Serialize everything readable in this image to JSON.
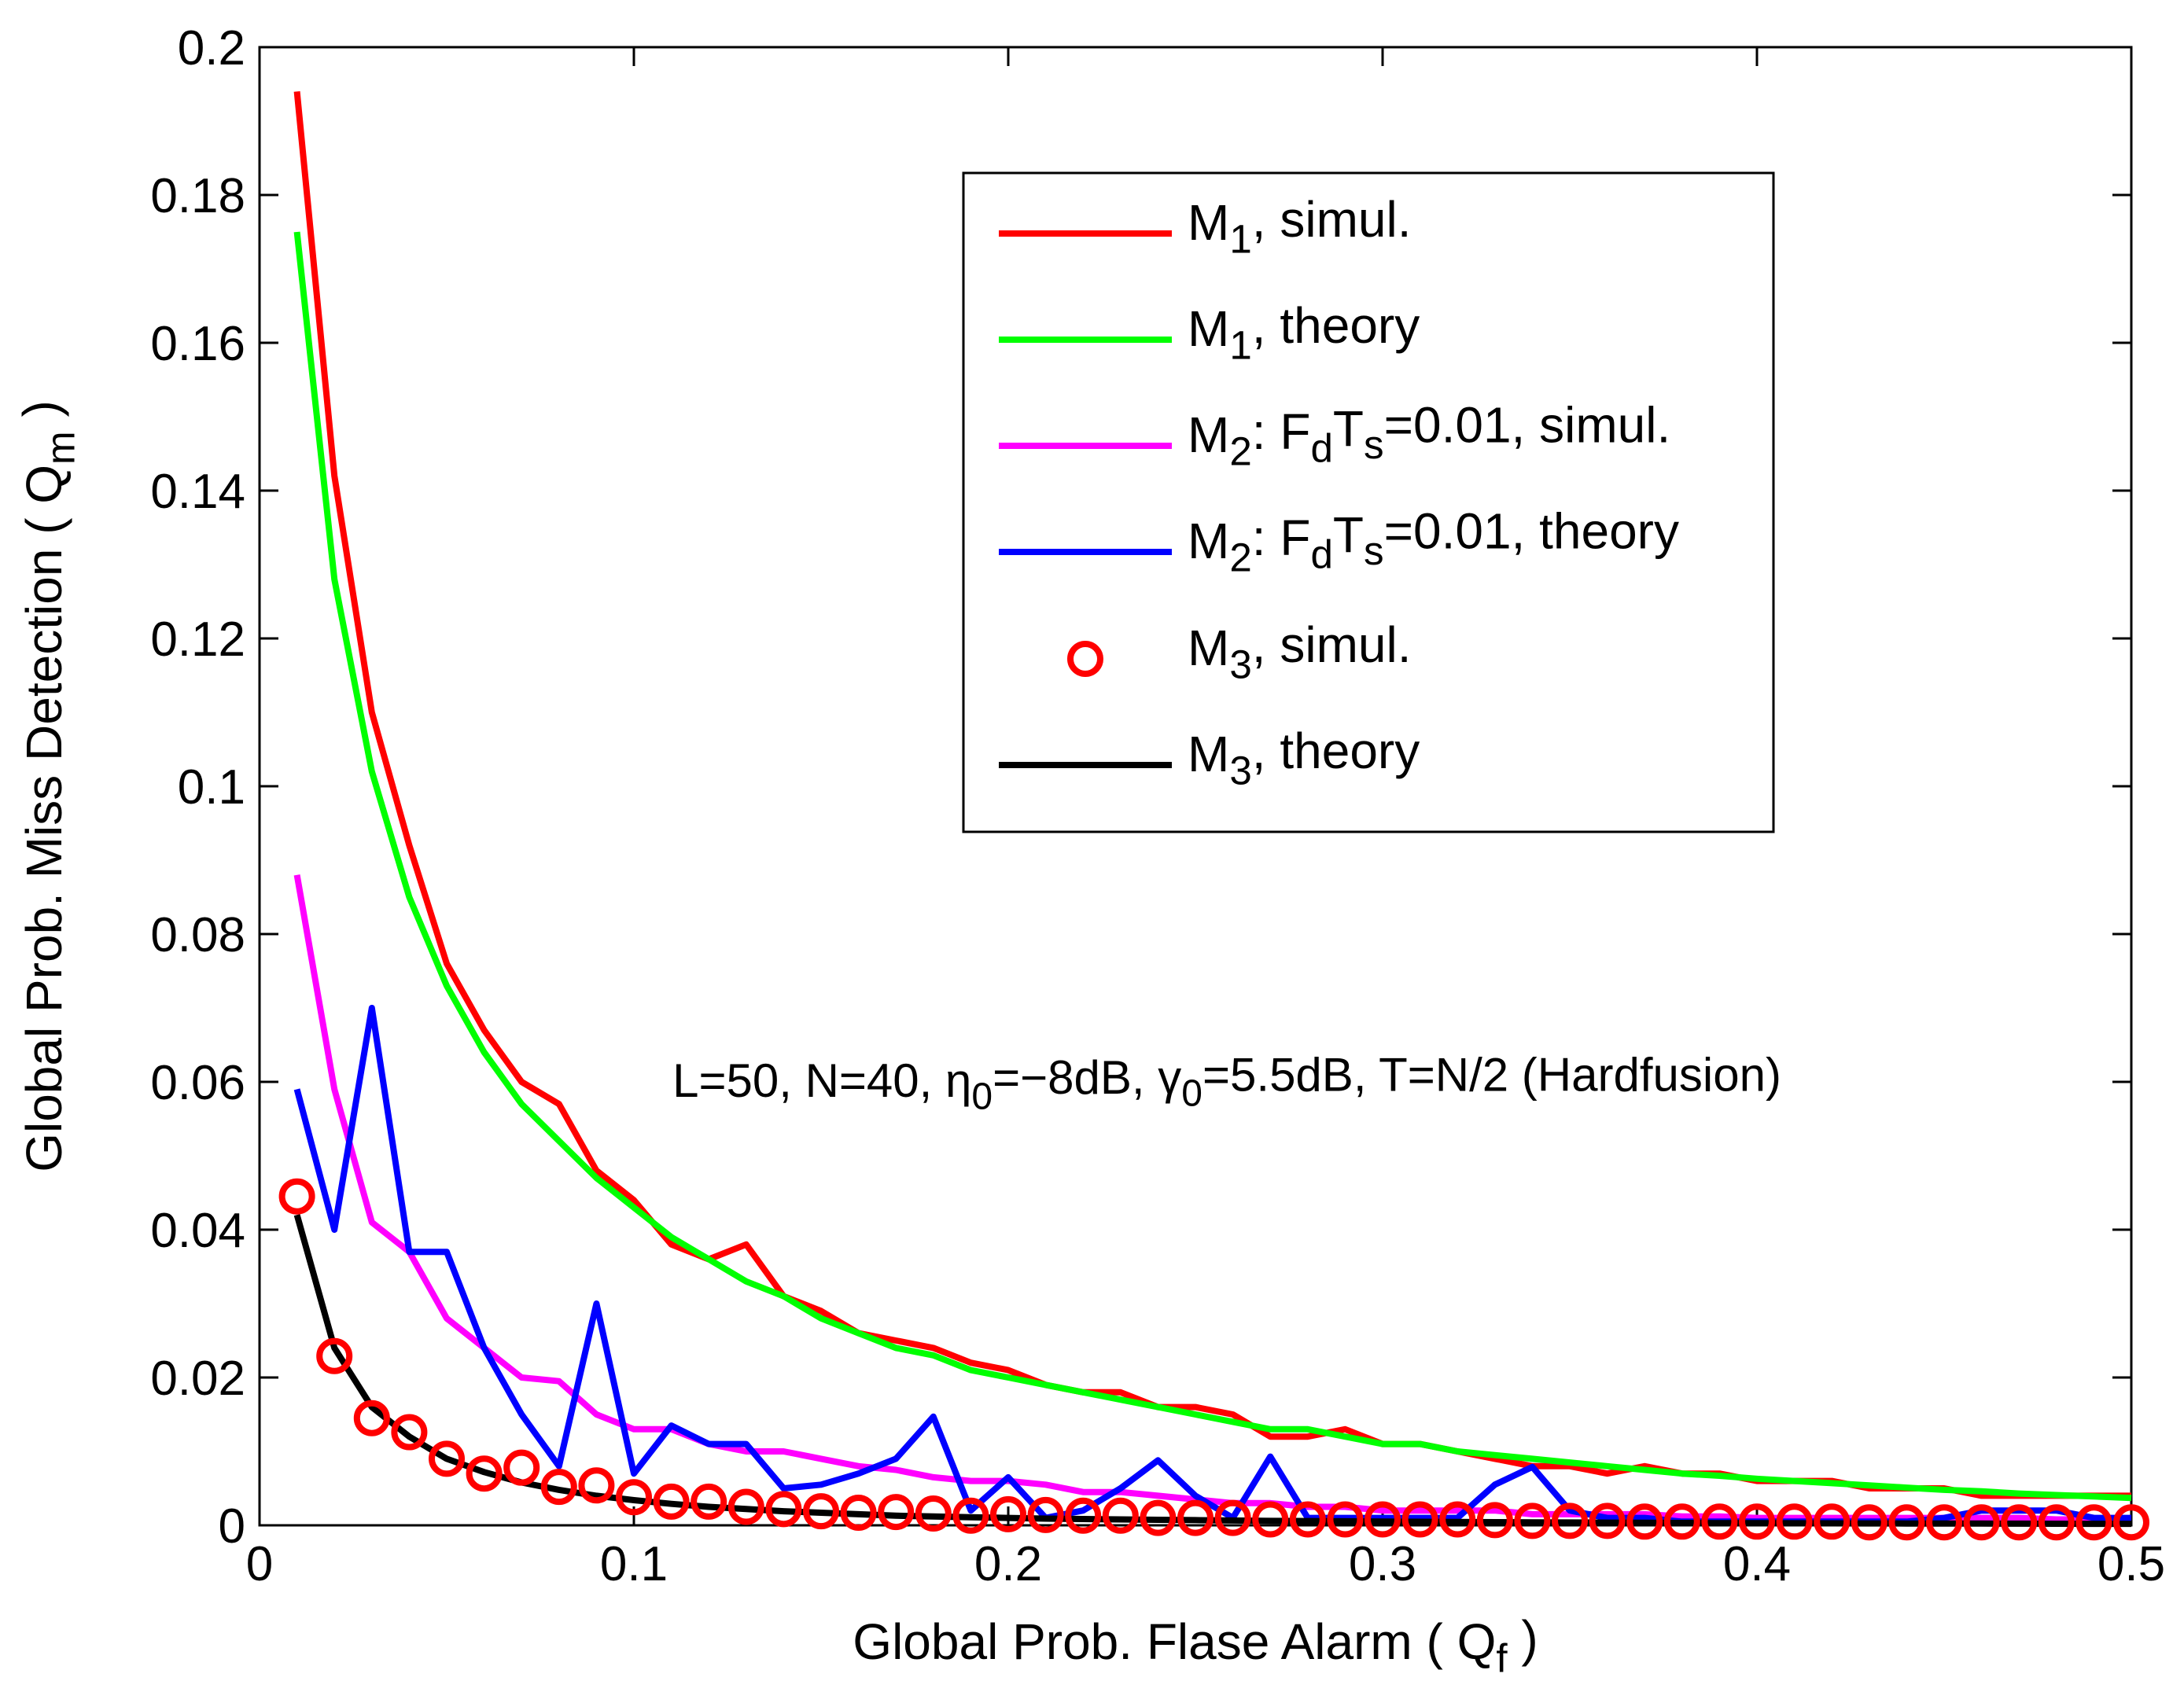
{
  "chart_data": {
    "type": "line",
    "title": "",
    "xlabel": "Global Prob. Flase Alarm ( Q_f )",
    "ylabel": "Global Prob. Miss Detection ( Q_m )",
    "xlabel_parts": {
      "pre": "Global Prob. Flase Alarm ( Q",
      "sub": "f",
      "post": " )"
    },
    "ylabel_parts": {
      "pre": "Global Prob. Miss Detection ( Q",
      "sub": "m",
      "post": " )"
    },
    "xlim": [
      0,
      0.5
    ],
    "ylim": [
      0,
      0.2
    ],
    "xticks": [
      0,
      0.1,
      0.2,
      0.3,
      0.4,
      0.5
    ],
    "xtick_labels": [
      "0",
      "0.1",
      "0.2",
      "0.3",
      "0.4",
      "0.5"
    ],
    "yticks": [
      0,
      0.02,
      0.04,
      0.06,
      0.08,
      0.1,
      0.12,
      0.14,
      0.16,
      0.18,
      0.2
    ],
    "ytick_labels": [
      "0",
      "0.02",
      "0.04",
      "0.06",
      "0.08",
      "0.1",
      "0.12",
      "0.14",
      "0.16",
      "0.18",
      "0.2"
    ],
    "grid": false,
    "legend_position": "top-right",
    "annotation": {
      "parts": [
        {
          "t": "L=50,  N=40, "
        },
        {
          "t": "η"
        },
        {
          "t": "0",
          "sub": true
        },
        {
          "t": "=−8dB, "
        },
        {
          "t": "γ"
        },
        {
          "t": "0",
          "sub": true
        },
        {
          "t": "=5.5dB, T=N/2 (Hardfusion)"
        }
      ]
    },
    "x": [
      0.01,
      0.02,
      0.03,
      0.04,
      0.05,
      0.06,
      0.07,
      0.08,
      0.09,
      0.1,
      0.11,
      0.12,
      0.13,
      0.14,
      0.15,
      0.16,
      0.17,
      0.18,
      0.19,
      0.2,
      0.21,
      0.22,
      0.23,
      0.24,
      0.25,
      0.26,
      0.27,
      0.28,
      0.29,
      0.3,
      0.31,
      0.32,
      0.33,
      0.34,
      0.35,
      0.36,
      0.37,
      0.38,
      0.39,
      0.4,
      0.41,
      0.42,
      0.43,
      0.44,
      0.45,
      0.46,
      0.47,
      0.48,
      0.49,
      0.5
    ],
    "series": [
      {
        "name": "M1, simul.",
        "legend_parts": [
          {
            "t": "M"
          },
          {
            "t": "1",
            "sub": true
          },
          {
            "t": ", simul."
          }
        ],
        "style": "line",
        "color": "#ff0000",
        "values": [
          0.194,
          0.142,
          0.11,
          0.092,
          0.076,
          0.067,
          0.06,
          0.057,
          0.048,
          0.044,
          0.038,
          0.036,
          0.038,
          0.031,
          0.029,
          0.026,
          0.025,
          0.024,
          0.022,
          0.021,
          0.019,
          0.018,
          0.018,
          0.016,
          0.016,
          0.015,
          0.012,
          0.012,
          0.013,
          0.011,
          0.011,
          0.01,
          0.009,
          0.008,
          0.008,
          0.007,
          0.008,
          0.007,
          0.007,
          0.006,
          0.006,
          0.006,
          0.005,
          0.005,
          0.005,
          0.004,
          0.004,
          0.004,
          0.004,
          0.004
        ]
      },
      {
        "name": "M1, theory",
        "legend_parts": [
          {
            "t": "M"
          },
          {
            "t": "1",
            "sub": true
          },
          {
            "t": ", theory"
          }
        ],
        "style": "line",
        "color": "#00ff00",
        "values": [
          0.175,
          0.128,
          0.102,
          0.085,
          0.073,
          0.064,
          0.057,
          0.052,
          0.047,
          0.043,
          0.039,
          0.036,
          0.033,
          0.031,
          0.028,
          0.026,
          0.024,
          0.023,
          0.021,
          0.02,
          0.019,
          0.018,
          0.017,
          0.016,
          0.015,
          0.014,
          0.013,
          0.013,
          0.012,
          0.011,
          0.011,
          0.01,
          0.0095,
          0.009,
          0.0085,
          0.008,
          0.0075,
          0.007,
          0.0067,
          0.0063,
          0.006,
          0.0057,
          0.0054,
          0.0051,
          0.0048,
          0.0046,
          0.0043,
          0.0041,
          0.0039,
          0.0037
        ]
      },
      {
        "name": "M2: FdTs=0.01, simul.",
        "legend_parts": [
          {
            "t": "M"
          },
          {
            "t": "2",
            "sub": true
          },
          {
            "t": ": F"
          },
          {
            "t": "d",
            "sub": true
          },
          {
            "t": "T"
          },
          {
            "t": "s",
            "sub": true
          },
          {
            "t": "=0.01, simul."
          }
        ],
        "style": "line",
        "color": "#ff00ff",
        "values": [
          0.088,
          0.059,
          0.041,
          0.037,
          0.028,
          0.024,
          0.02,
          0.0195,
          0.015,
          0.013,
          0.013,
          0.011,
          0.01,
          0.01,
          0.009,
          0.008,
          0.0075,
          0.0065,
          0.006,
          0.006,
          0.0055,
          0.0045,
          0.0045,
          0.004,
          0.0035,
          0.003,
          0.003,
          0.0025,
          0.0025,
          0.002,
          0.002,
          0.002,
          0.002,
          0.0015,
          0.0015,
          0.0015,
          0.0015,
          0.0012,
          0.0012,
          0.001,
          0.001,
          0.001,
          0.001,
          0.001,
          0.001,
          0.001,
          0.001,
          0.0008,
          0.0008,
          0.0008
        ]
      },
      {
        "name": "M2: FdTs=0.01, theory",
        "legend_parts": [
          {
            "t": "M"
          },
          {
            "t": "2",
            "sub": true
          },
          {
            "t": ": F"
          },
          {
            "t": "d",
            "sub": true
          },
          {
            "t": "T"
          },
          {
            "t": "s",
            "sub": true
          },
          {
            "t": "=0.01, theory"
          }
        ],
        "style": "line",
        "color": "#0000ff",
        "values": [
          0.059,
          0.04,
          0.07,
          0.037,
          0.037,
          0.024,
          0.015,
          0.008,
          0.03,
          0.007,
          0.0135,
          0.011,
          0.011,
          0.005,
          0.0055,
          0.007,
          0.009,
          0.0147,
          0.002,
          0.0065,
          0.001,
          0.002,
          0.005,
          0.0088,
          0.004,
          0.001,
          0.0093,
          0.001,
          0.001,
          0.001,
          0.001,
          0.001,
          0.0055,
          0.0079,
          0.002,
          0.001,
          0.001,
          0.0005,
          0.0005,
          0.0005,
          0.0005,
          0.0005,
          0.0005,
          0.0005,
          0.001,
          0.002,
          0.002,
          0.002,
          0.001,
          0.001
        ]
      },
      {
        "name": "M3, simul.",
        "legend_parts": [
          {
            "t": "M"
          },
          {
            "t": "3",
            "sub": true
          },
          {
            "t": ", simul."
          }
        ],
        "style": "marker",
        "color": "#ff0000",
        "values": [
          0.0445,
          0.0229,
          0.0145,
          0.0126,
          0.009,
          0.007,
          0.0078,
          0.0052,
          0.0054,
          0.0038,
          0.0032,
          0.0032,
          0.0025,
          0.0022,
          0.0019,
          0.0017,
          0.0018,
          0.0016,
          0.0013,
          0.0015,
          0.0014,
          0.0013,
          0.0013,
          0.001,
          0.001,
          0.001,
          0.0008,
          0.0008,
          0.0008,
          0.0008,
          0.0008,
          0.0008,
          0.0007,
          0.0006,
          0.0006,
          0.0006,
          0.0005,
          0.0005,
          0.0005,
          0.0005,
          0.0005,
          0.0005,
          0.0004,
          0.0004,
          0.0004,
          0.0004,
          0.0004,
          0.0004,
          0.0004,
          0.0004
        ]
      },
      {
        "name": "M3, theory",
        "legend_parts": [
          {
            "t": "M"
          },
          {
            "t": "3",
            "sub": true
          },
          {
            "t": ", theory"
          }
        ],
        "style": "line",
        "color": "#000000",
        "values": [
          0.042,
          0.024,
          0.016,
          0.012,
          0.009,
          0.0072,
          0.0058,
          0.0048,
          0.004,
          0.0034,
          0.0029,
          0.0025,
          0.0022,
          0.0019,
          0.0017,
          0.0015,
          0.0013,
          0.0012,
          0.0011,
          0.001,
          0.0009,
          0.00085,
          0.0008,
          0.00075,
          0.0007,
          0.00065,
          0.0006,
          0.00057,
          0.00054,
          0.0005,
          0.00048,
          0.00045,
          0.00043,
          0.0004,
          0.00038,
          0.00036,
          0.00034,
          0.00032,
          0.0003,
          0.00029,
          0.00028,
          0.00027,
          0.00026,
          0.00025,
          0.00024,
          0.00023,
          0.00022,
          0.00021,
          0.0002,
          0.0002
        ]
      }
    ]
  }
}
